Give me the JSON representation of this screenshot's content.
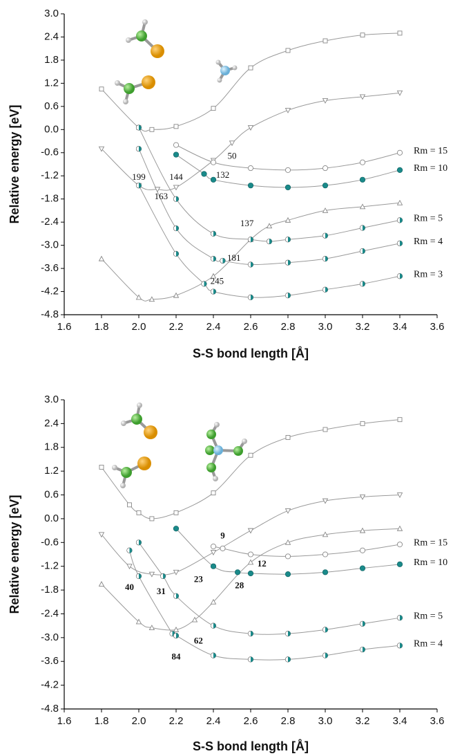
{
  "chart_data": [
    {
      "type": "line",
      "x_label": "S-S bond length [Å]",
      "y_label": "Relative energy [eV]",
      "xlim": [
        1.6,
        3.6
      ],
      "xticks": [
        1.6,
        1.8,
        {
          "value": 2,
          "label": "2.0"
        },
        2.2,
        2.4,
        2.6,
        2.8,
        {
          "value": 3,
          "label": "3.0"
        },
        3.2,
        3.4,
        3.6
      ],
      "ylim": [
        -4.8,
        3.0
      ],
      "yticks": [
        {
          "value": 3,
          "label": "3.0"
        },
        2.4,
        1.8,
        1.2,
        0.6,
        {
          "value": 0,
          "label": "0.0"
        },
        -0.6,
        -1.2,
        -1.8,
        -2.4,
        {
          "value": -3,
          "label": "-3.0"
        },
        -3.6,
        -4.2,
        -4.8
      ],
      "annotation_bold": false,
      "series": [
        {
          "marker": "square",
          "color": "#999999",
          "x": [
            1.8,
            2.0,
            2.07,
            2.2,
            2.4,
            2.6,
            2.8,
            3.0,
            3.2,
            3.4
          ],
          "values": [
            1.05,
            0.05,
            0.0,
            0.08,
            0.55,
            1.6,
            2.05,
            2.3,
            2.45,
            2.5
          ]
        },
        {
          "marker": "tri-down",
          "color": "#999999",
          "x": [
            1.8,
            2.0,
            2.1,
            2.2,
            2.4,
            2.5,
            2.6,
            2.8,
            3.0,
            3.2,
            3.4
          ],
          "values": [
            -0.5,
            -1.45,
            -1.55,
            -1.5,
            -0.8,
            -0.35,
            0.05,
            0.5,
            0.75,
            0.85,
            0.95
          ]
        },
        {
          "marker": "tri-up",
          "color": "#999999",
          "x": [
            1.8,
            2.0,
            2.07,
            2.2,
            2.4,
            2.6,
            2.7,
            2.8,
            3.0,
            3.2,
            3.4
          ],
          "values": [
            -3.35,
            -4.35,
            -4.4,
            -4.3,
            -3.8,
            -2.85,
            -2.5,
            -2.35,
            -2.1,
            -2.0,
            -1.9
          ]
        },
        {
          "name": "Rm = 15",
          "marker": "circle",
          "color": "#999999",
          "x": [
            2.2,
            2.4,
            2.6,
            2.8,
            3.0,
            3.2,
            3.4
          ],
          "values": [
            -0.4,
            -0.85,
            -1.0,
            -1.05,
            -1.0,
            -0.85,
            -0.6
          ]
        },
        {
          "name": "Rm = 10",
          "marker": "filled",
          "color": "#1a8a8a",
          "x": [
            2.2,
            2.35,
            2.4,
            2.6,
            2.8,
            3.0,
            3.2,
            3.4
          ],
          "values": [
            -0.65,
            -1.15,
            -1.3,
            -1.45,
            -1.5,
            -1.45,
            -1.3,
            -1.05
          ]
        },
        {
          "name": "Rm = 5",
          "marker": "half",
          "color": "#1a8a8a",
          "x": [
            2.0,
            2.2,
            2.4,
            2.6,
            2.7,
            2.8,
            3.0,
            3.2,
            3.4
          ],
          "values": [
            0.05,
            -1.8,
            -2.7,
            -2.85,
            -2.9,
            -2.85,
            -2.75,
            -2.55,
            -2.35
          ]
        },
        {
          "name": "Rm = 4",
          "marker": "half",
          "color": "#1a8a8a",
          "x": [
            2.0,
            2.2,
            2.4,
            2.45,
            2.6,
            2.8,
            3.0,
            3.2,
            3.4
          ],
          "values": [
            -0.5,
            -2.56,
            -3.35,
            -3.4,
            -3.5,
            -3.45,
            -3.35,
            -3.15,
            -2.95
          ]
        },
        {
          "name": "Rm = 3",
          "marker": "half",
          "color": "#1a8a8a",
          "x": [
            2.0,
            2.2,
            2.35,
            2.4,
            2.6,
            2.8,
            3.0,
            3.2,
            3.4
          ],
          "values": [
            -1.45,
            -3.22,
            -4.0,
            -4.2,
            -4.35,
            -4.3,
            -4.15,
            -4.0,
            -3.8
          ]
        }
      ],
      "annotations": [
        {
          "text": "199",
          "x": 2.0,
          "y": -1.25
        },
        {
          "text": "163",
          "x": 2.12,
          "y": -1.75
        },
        {
          "text": "144",
          "x": 2.2,
          "y": -1.25
        },
        {
          "text": "132",
          "x": 2.45,
          "y": -1.2
        },
        {
          "text": "50",
          "x": 2.5,
          "y": -0.7
        },
        {
          "text": "137",
          "x": 2.58,
          "y": -2.45
        },
        {
          "text": "181",
          "x": 2.51,
          "y": -3.35
        },
        {
          "text": "245",
          "x": 2.42,
          "y": -3.95
        }
      ]
    },
    {
      "type": "line",
      "x_label": "S-S bond length [Å]",
      "y_label": "Relative energy [eV]",
      "xlim": [
        1.6,
        3.6
      ],
      "xticks": [
        1.6,
        1.8,
        {
          "value": 2,
          "label": "2.0"
        },
        2.2,
        2.4,
        2.6,
        2.8,
        {
          "value": 3,
          "label": "3.0"
        },
        3.2,
        3.4,
        3.6
      ],
      "ylim": [
        -4.8,
        3.0
      ],
      "yticks": [
        {
          "value": 3,
          "label": "3.0"
        },
        2.4,
        1.8,
        1.2,
        0.6,
        {
          "value": 0,
          "label": "0.0"
        },
        -0.6,
        -1.2,
        -1.8,
        -2.4,
        {
          "value": -3,
          "label": "-3.0"
        },
        -3.6,
        -4.2,
        -4.8
      ],
      "annotation_bold": true,
      "series": [
        {
          "marker": "square",
          "color": "#999999",
          "x": [
            1.8,
            1.95,
            2.0,
            2.07,
            2.2,
            2.4,
            2.6,
            2.8,
            3.0,
            3.2,
            3.4
          ],
          "values": [
            1.3,
            0.35,
            0.15,
            0.0,
            0.15,
            0.65,
            1.6,
            2.05,
            2.25,
            2.4,
            2.5
          ]
        },
        {
          "marker": "tri-down",
          "color": "#999999",
          "x": [
            1.8,
            1.95,
            2.07,
            2.2,
            2.4,
            2.6,
            2.8,
            3.0,
            3.2,
            3.4
          ],
          "values": [
            -0.4,
            -1.2,
            -1.4,
            -1.35,
            -0.85,
            -0.3,
            0.2,
            0.45,
            0.55,
            0.6
          ]
        },
        {
          "marker": "tri-up",
          "color": "#999999",
          "x": [
            1.8,
            2.0,
            2.07,
            2.2,
            2.3,
            2.4,
            2.6,
            2.8,
            3.0,
            3.2,
            3.4
          ],
          "values": [
            -1.65,
            -2.6,
            -2.75,
            -2.8,
            -2.55,
            -2.1,
            -1.1,
            -0.6,
            -0.4,
            -0.3,
            -0.25
          ]
        },
        {
          "name": "Rm = 15",
          "marker": "circle",
          "color": "#999999",
          "x": [
            2.4,
            2.45,
            2.6,
            2.8,
            3.0,
            3.2,
            3.4
          ],
          "values": [
            -0.7,
            -0.75,
            -0.9,
            -0.95,
            -0.9,
            -0.8,
            -0.65
          ]
        },
        {
          "name": "Rm = 10",
          "marker": "filled",
          "color": "#1a8a8a",
          "x": [
            2.2,
            2.4,
            2.53,
            2.6,
            2.8,
            3.0,
            3.2,
            3.4
          ],
          "values": [
            -0.25,
            -1.2,
            -1.35,
            -1.38,
            -1.4,
            -1.35,
            -1.25,
            -1.15
          ]
        },
        {
          "name": "Rm = 5",
          "marker": "half",
          "color": "#1a8a8a",
          "x": [
            2.0,
            2.13,
            2.2,
            2.4,
            2.6,
            2.8,
            3.0,
            3.2,
            3.4
          ],
          "values": [
            -0.6,
            -1.45,
            -1.95,
            -2.7,
            -2.9,
            -2.9,
            -2.8,
            -2.65,
            -2.5
          ]
        },
        {
          "name": "Rm = 4",
          "marker": "half",
          "color": "#1a8a8a",
          "x": [
            1.95,
            2.0,
            2.18,
            2.2,
            2.4,
            2.6,
            2.8,
            3.0,
            3.2,
            3.4
          ],
          "values": [
            -0.8,
            -1.45,
            -2.9,
            -2.95,
            -3.45,
            -3.55,
            -3.55,
            -3.45,
            -3.3,
            -3.2
          ]
        }
      ],
      "annotations": [
        {
          "text": "9",
          "x": 2.45,
          "y": -0.45
        },
        {
          "text": "12",
          "x": 2.66,
          "y": -1.15
        },
        {
          "text": "23",
          "x": 2.32,
          "y": -1.55
        },
        {
          "text": "28",
          "x": 2.54,
          "y": -1.7
        },
        {
          "text": "40",
          "x": 1.95,
          "y": -1.75
        },
        {
          "text": "31",
          "x": 2.12,
          "y": -1.85
        },
        {
          "text": "62",
          "x": 2.32,
          "y": -3.1
        },
        {
          "text": "84",
          "x": 2.2,
          "y": -3.5
        }
      ]
    }
  ]
}
